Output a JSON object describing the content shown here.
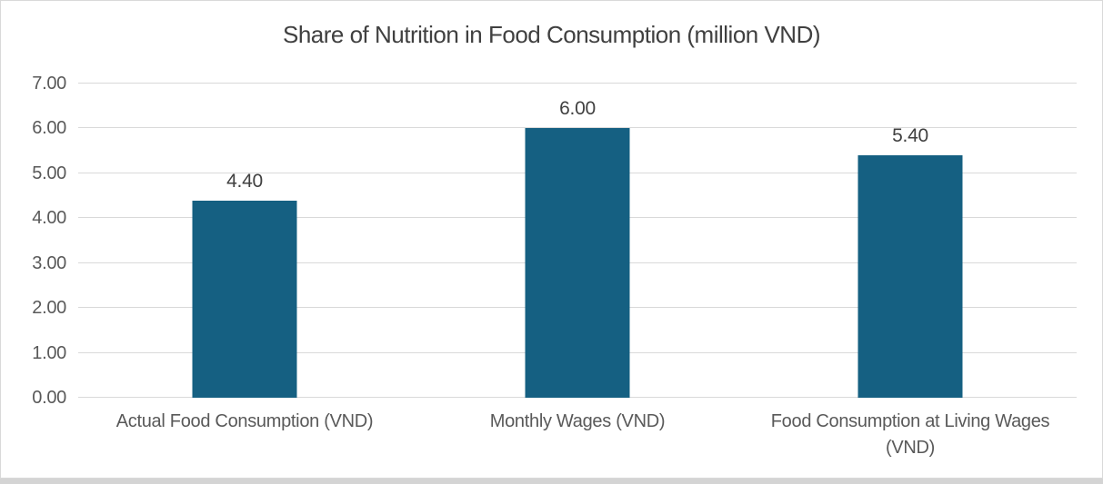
{
  "chart_data": {
    "type": "bar",
    "title": "Share of Nutrition in Food Consumption (million VND)",
    "categories": [
      "Actual Food Consumption (VND)",
      "Monthly Wages (VND)",
      "Food Consumption at Living Wages (VND)"
    ],
    "values": [
      4.4,
      6.0,
      5.4
    ],
    "value_labels": [
      "4.40",
      "6.00",
      "5.40"
    ],
    "ytick_values": [
      0,
      1,
      2,
      3,
      4,
      5,
      6,
      7
    ],
    "ytick_labels": [
      "0.00",
      "1.00",
      "2.00",
      "3.00",
      "4.00",
      "5.00",
      "6.00",
      "7.00"
    ],
    "ylim": [
      0,
      7
    ],
    "xlabel": "",
    "ylabel": "",
    "grid": true,
    "legend": false,
    "colors": {
      "bar_fill": "#156082",
      "gridline": "#d9d9d9",
      "axis_text": "#595959",
      "title_text": "#404040",
      "data_label_text": "#404040",
      "frame_border": "#d9d9d9",
      "bottom_strip": "#d4d4d4",
      "background": "#ffffff"
    }
  }
}
